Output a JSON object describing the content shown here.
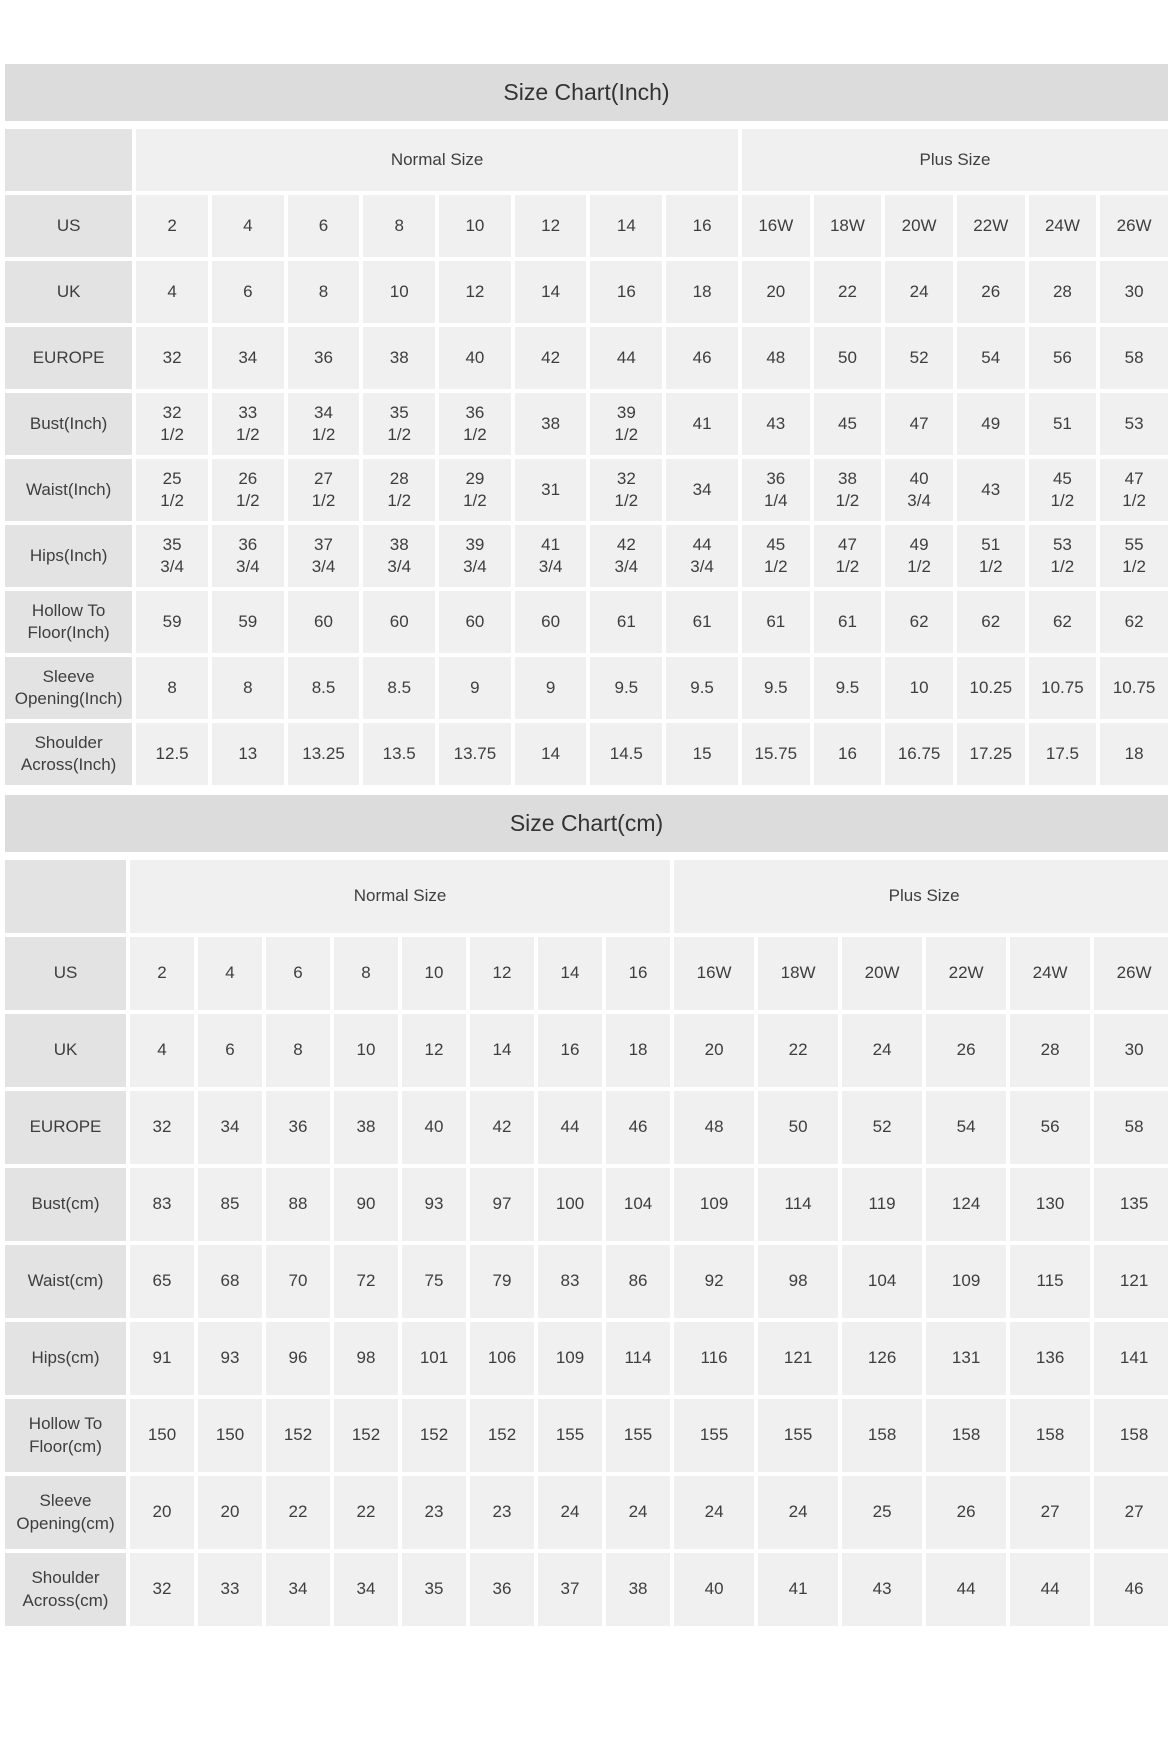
{
  "colors": {
    "title_bar_bg": "#dcdcdc",
    "label_cell_bg": "#e3e3e3",
    "data_cell_bg": "#f0f0f0",
    "text": "#3e3e3e"
  },
  "tables": [
    {
      "title": "Size Chart(Inch)",
      "group_header": {
        "normal_label": "Normal Size",
        "plus_label": "Plus Size",
        "normal_columns": 8,
        "plus_columns": 6
      },
      "rows": [
        {
          "label": "US",
          "values": [
            "2",
            "4",
            "6",
            "8",
            "10",
            "12",
            "14",
            "16",
            "16W",
            "18W",
            "20W",
            "22W",
            "24W",
            "26W"
          ]
        },
        {
          "label": "UK",
          "values": [
            "4",
            "6",
            "8",
            "10",
            "12",
            "14",
            "16",
            "18",
            "20",
            "22",
            "24",
            "26",
            "28",
            "30"
          ]
        },
        {
          "label": "EUROPE",
          "values": [
            "32",
            "34",
            "36",
            "38",
            "40",
            "42",
            "44",
            "46",
            "48",
            "50",
            "52",
            "54",
            "56",
            "58"
          ]
        },
        {
          "label": "Bust(Inch)",
          "values": [
            "32\n1/2",
            "33\n1/2",
            "34\n1/2",
            "35\n1/2",
            "36\n1/2",
            "38",
            "39\n1/2",
            "41",
            "43",
            "45",
            "47",
            "49",
            "51",
            "53"
          ]
        },
        {
          "label": "Waist(Inch)",
          "values": [
            "25\n1/2",
            "26\n1/2",
            "27\n1/2",
            "28\n1/2",
            "29\n1/2",
            "31",
            "32\n1/2",
            "34",
            "36\n1/4",
            "38\n1/2",
            "40\n3/4",
            "43",
            "45\n1/2",
            "47\n1/2"
          ]
        },
        {
          "label": "Hips(Inch)",
          "values": [
            "35\n3/4",
            "36\n3/4",
            "37\n3/4",
            "38\n3/4",
            "39\n3/4",
            "41\n3/4",
            "42\n3/4",
            "44\n3/4",
            "45\n1/2",
            "47\n1/2",
            "49\n1/2",
            "51\n1/2",
            "53\n1/2",
            "55\n1/2"
          ]
        },
        {
          "label": "Hollow To Floor(Inch)",
          "values": [
            "59",
            "59",
            "60",
            "60",
            "60",
            "60",
            "61",
            "61",
            "61",
            "61",
            "62",
            "62",
            "62",
            "62"
          ]
        },
        {
          "label": "Sleeve Opening(Inch)",
          "values": [
            "8",
            "8",
            "8.5",
            "8.5",
            "9",
            "9",
            "9.5",
            "9.5",
            "9.5",
            "9.5",
            "10",
            "10.25",
            "10.75",
            "10.75"
          ]
        },
        {
          "label": "Shoulder Across(Inch)",
          "values": [
            "12.5",
            "13",
            "13.25",
            "13.5",
            "13.75",
            "14",
            "14.5",
            "15",
            "15.75",
            "16",
            "16.75",
            "17.25",
            "17.5",
            "18"
          ]
        }
      ]
    },
    {
      "title": "Size Chart(cm)",
      "group_header": {
        "normal_label": "Normal Size",
        "plus_label": "Plus Size",
        "normal_columns": 8,
        "plus_columns": 6
      },
      "rows": [
        {
          "label": "US",
          "values": [
            "2",
            "4",
            "6",
            "8",
            "10",
            "12",
            "14",
            "16",
            "16W",
            "18W",
            "20W",
            "22W",
            "24W",
            "26W"
          ]
        },
        {
          "label": "UK",
          "values": [
            "4",
            "6",
            "8",
            "10",
            "12",
            "14",
            "16",
            "18",
            "20",
            "22",
            "24",
            "26",
            "28",
            "30"
          ]
        },
        {
          "label": "EUROPE",
          "values": [
            "32",
            "34",
            "36",
            "38",
            "40",
            "42",
            "44",
            "46",
            "48",
            "50",
            "52",
            "54",
            "56",
            "58"
          ]
        },
        {
          "label": "Bust(cm)",
          "values": [
            "83",
            "85",
            "88",
            "90",
            "93",
            "97",
            "100",
            "104",
            "109",
            "114",
            "119",
            "124",
            "130",
            "135"
          ]
        },
        {
          "label": "Waist(cm)",
          "values": [
            "65",
            "68",
            "70",
            "72",
            "75",
            "79",
            "83",
            "86",
            "92",
            "98",
            "104",
            "109",
            "115",
            "121"
          ]
        },
        {
          "label": "Hips(cm)",
          "values": [
            "91",
            "93",
            "96",
            "98",
            "101",
            "106",
            "109",
            "114",
            "116",
            "121",
            "126",
            "131",
            "136",
            "141"
          ]
        },
        {
          "label": "Hollow To Floor(cm)",
          "values": [
            "150",
            "150",
            "152",
            "152",
            "152",
            "152",
            "155",
            "155",
            "155",
            "155",
            "158",
            "158",
            "158",
            "158"
          ]
        },
        {
          "label": "Sleeve Opening(cm)",
          "values": [
            "20",
            "20",
            "22",
            "22",
            "23",
            "23",
            "24",
            "24",
            "24",
            "24",
            "25",
            "26",
            "27",
            "27"
          ]
        },
        {
          "label": "Shoulder Across(cm)",
          "values": [
            "32",
            "33",
            "34",
            "34",
            "35",
            "36",
            "37",
            "38",
            "40",
            "41",
            "43",
            "44",
            "44",
            "46"
          ]
        }
      ]
    }
  ]
}
